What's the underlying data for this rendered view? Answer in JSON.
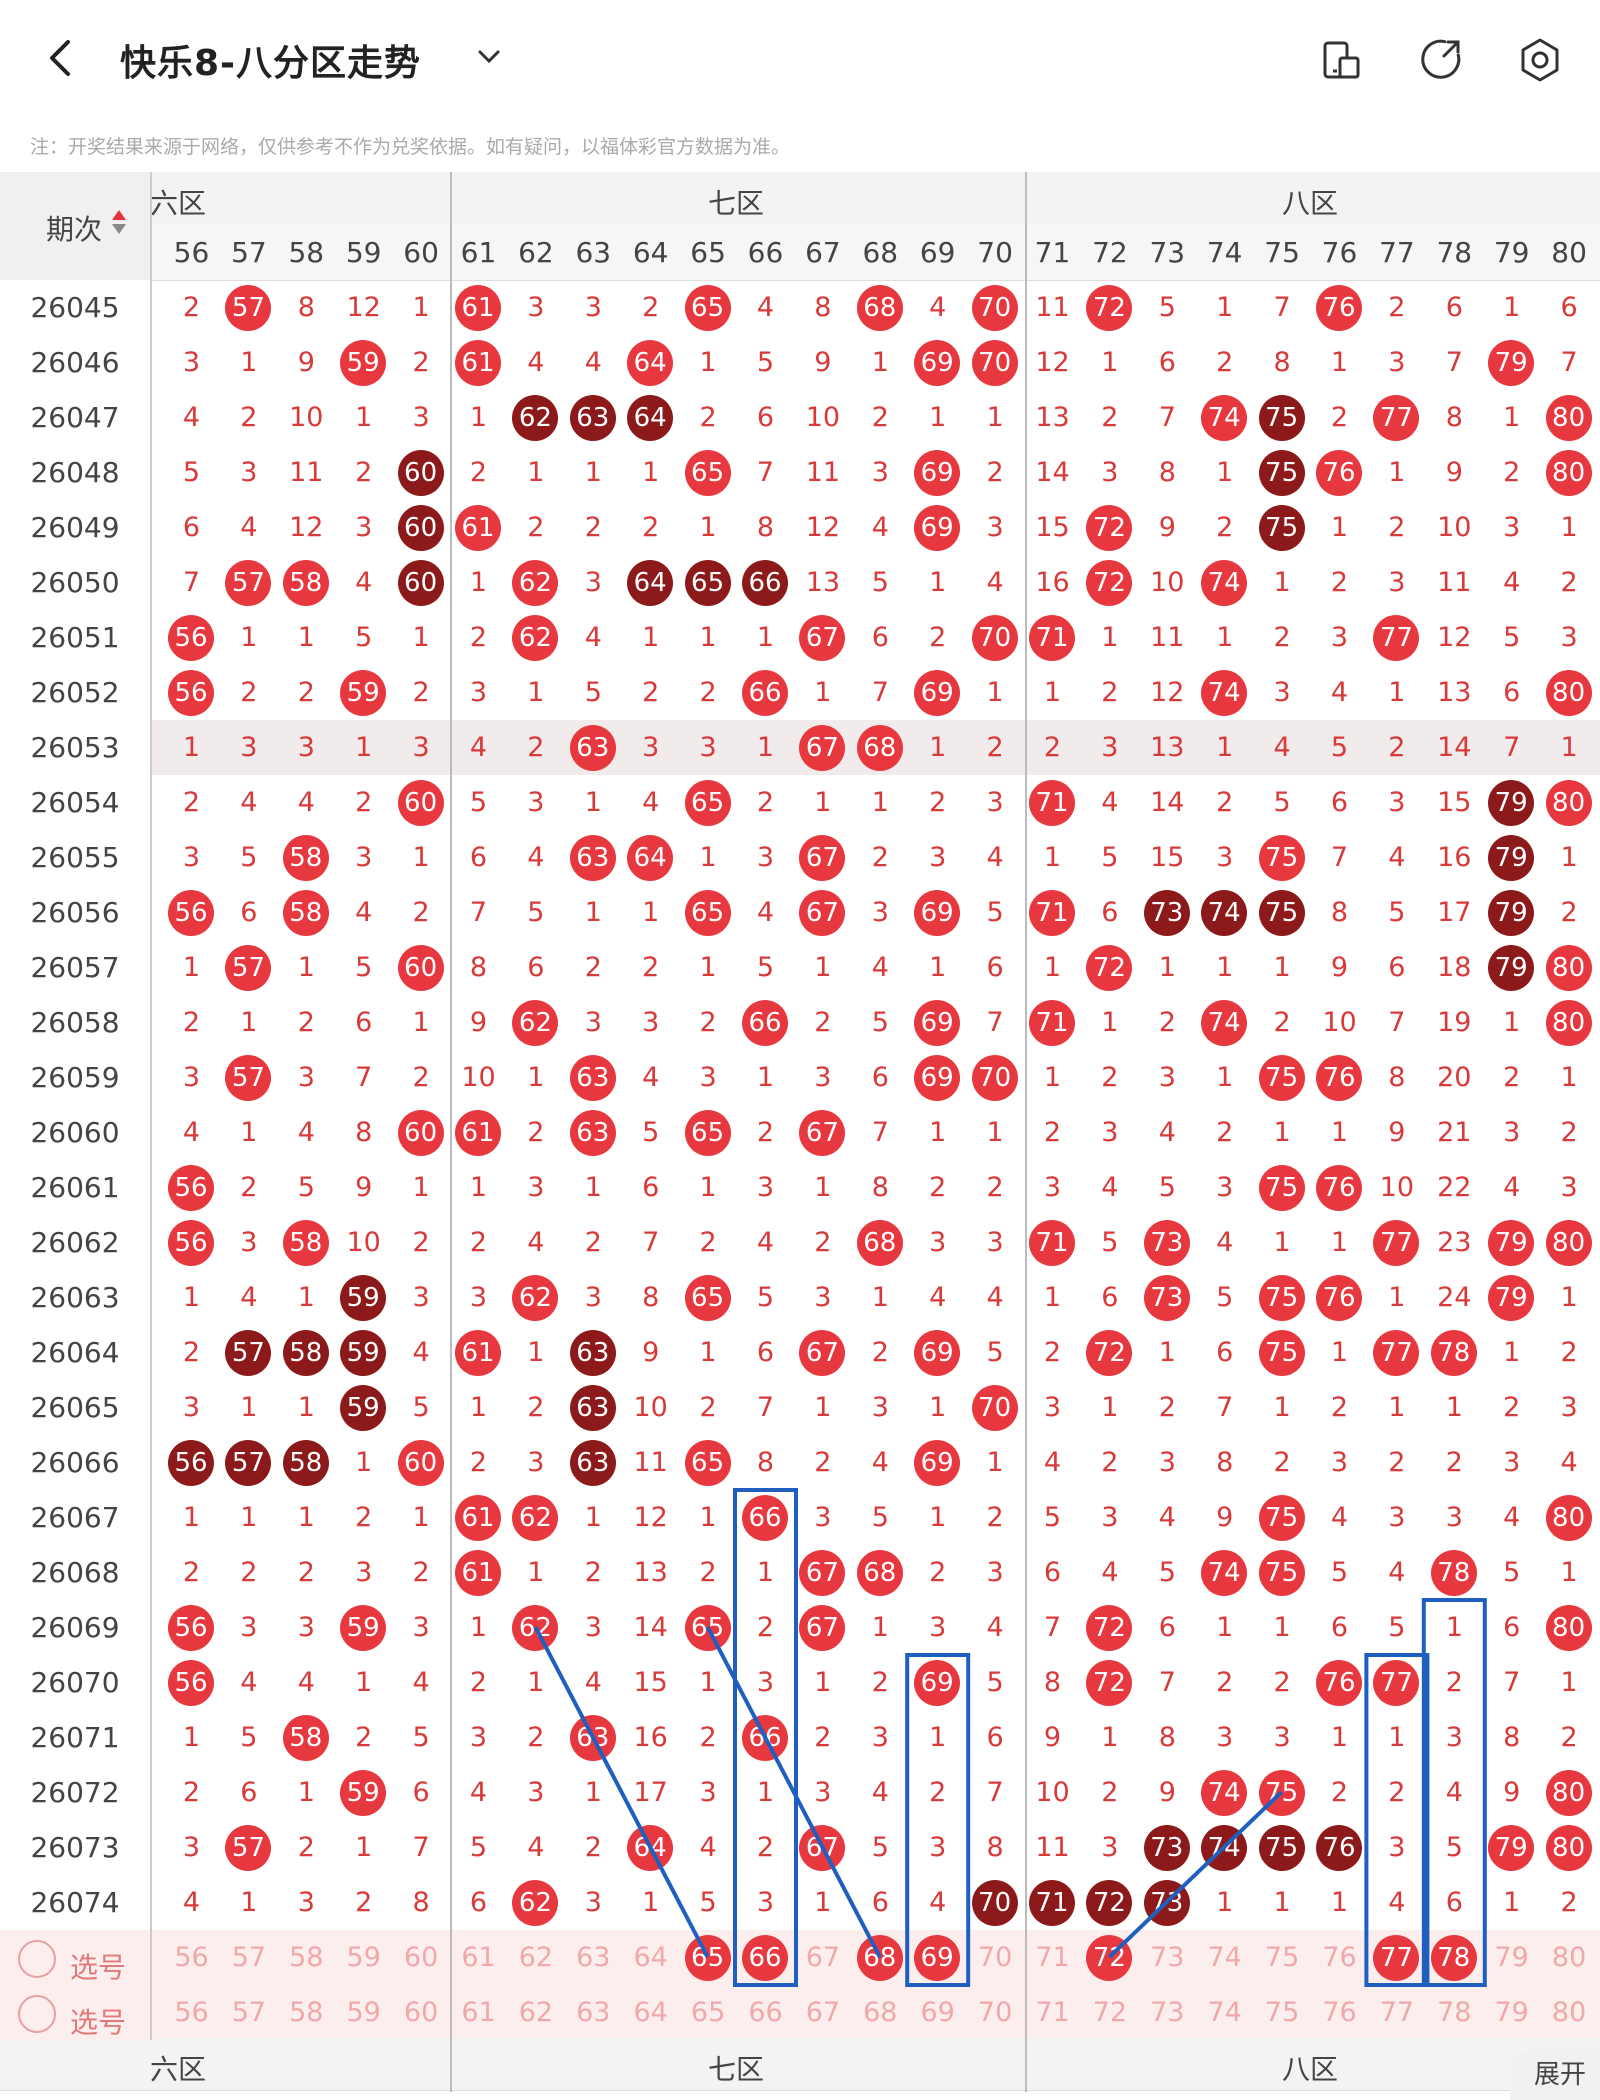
{
  "header": {
    "title": "快乐8-八分区走势",
    "notice": "注：开奖结果来源于网络，仅供参考不作为兑奖依据。如有疑问，以福体彩官方数据为准。"
  },
  "table": {
    "corner_label": "期次",
    "zones": [
      "六区",
      "七区",
      "八区"
    ],
    "zone_top_visible": [
      "六区",
      "七区",
      "八区"
    ],
    "zone_bottom_visible": [
      "六区",
      "七区",
      "八区"
    ],
    "columns": [
      56,
      57,
      58,
      59,
      60,
      61,
      62,
      63,
      64,
      65,
      66,
      67,
      68,
      69,
      70,
      71,
      72,
      73,
      74,
      75,
      76,
      77,
      78,
      79,
      80
    ],
    "rows": [
      {
        "period": "26045",
        "cells": [
          "2",
          "B57",
          "8",
          "12",
          "1",
          "B61",
          "3",
          "3",
          "2",
          "B65",
          "4",
          "8",
          "B68",
          "4",
          "B70",
          "11",
          "B72",
          "5",
          "1",
          "7",
          "B76",
          "2",
          "6",
          "1",
          "6"
        ]
      },
      {
        "period": "26046",
        "cells": [
          "3",
          "1",
          "9",
          "B59",
          "2",
          "B61",
          "4",
          "4",
          "B64",
          "1",
          "5",
          "9",
          "1",
          "B69",
          "B70",
          "12",
          "1",
          "6",
          "2",
          "8",
          "1",
          "3",
          "7",
          "B79",
          "7"
        ]
      },
      {
        "period": "26047",
        "cells": [
          "4",
          "2",
          "10",
          "1",
          "3",
          "1",
          "D62",
          "D63",
          "D64",
          "2",
          "6",
          "10",
          "2",
          "1",
          "1",
          "13",
          "2",
          "7",
          "B74",
          "D75",
          "2",
          "B77",
          "8",
          "1",
          "B80"
        ]
      },
      {
        "period": "26048",
        "cells": [
          "5",
          "3",
          "11",
          "2",
          "D60",
          "2",
          "1",
          "1",
          "1",
          "B65",
          "7",
          "11",
          "3",
          "B69",
          "2",
          "14",
          "3",
          "8",
          "1",
          "D75",
          "B76",
          "1",
          "9",
          "2",
          "B80"
        ]
      },
      {
        "period": "26049",
        "cells": [
          "6",
          "4",
          "12",
          "3",
          "D60",
          "B61",
          "2",
          "2",
          "2",
          "1",
          "8",
          "12",
          "4",
          "B69",
          "3",
          "15",
          "B72",
          "9",
          "2",
          "D75",
          "1",
          "2",
          "10",
          "3",
          "1"
        ]
      },
      {
        "period": "26050",
        "cells": [
          "7",
          "B57",
          "B58",
          "4",
          "D60",
          "1",
          "B62",
          "3",
          "D64",
          "D65",
          "D66",
          "13",
          "5",
          "1",
          "4",
          "16",
          "B72",
          "10",
          "B74",
          "1",
          "2",
          "3",
          "11",
          "4",
          "2"
        ]
      },
      {
        "period": "26051",
        "cells": [
          "B56",
          "1",
          "1",
          "5",
          "1",
          "2",
          "B62",
          "4",
          "1",
          "1",
          "1",
          "B67",
          "6",
          "2",
          "B70",
          "B71",
          "1",
          "11",
          "1",
          "2",
          "3",
          "B77",
          "12",
          "5",
          "3"
        ]
      },
      {
        "period": "26052",
        "cells": [
          "B56",
          "2",
          "2",
          "B59",
          "2",
          "3",
          "1",
          "5",
          "2",
          "2",
          "B66",
          "1",
          "7",
          "B69",
          "1",
          "1",
          "2",
          "12",
          "B74",
          "3",
          "4",
          "1",
          "13",
          "6",
          "B80"
        ]
      },
      {
        "period": "26053",
        "shade": true,
        "cells": [
          "1",
          "3",
          "3",
          "1",
          "3",
          "4",
          "2",
          "B63",
          "3",
          "3",
          "1",
          "B67",
          "B68",
          "1",
          "2",
          "2",
          "3",
          "13",
          "1",
          "4",
          "5",
          "2",
          "14",
          "7",
          "1"
        ]
      },
      {
        "period": "26054",
        "cells": [
          "2",
          "4",
          "4",
          "2",
          "B60",
          "5",
          "3",
          "1",
          "4",
          "B65",
          "2",
          "1",
          "1",
          "2",
          "3",
          "B71",
          "4",
          "14",
          "2",
          "5",
          "6",
          "3",
          "15",
          "D79",
          "B80"
        ]
      },
      {
        "period": "26055",
        "cells": [
          "3",
          "5",
          "B58",
          "3",
          "1",
          "6",
          "4",
          "B63",
          "B64",
          "1",
          "3",
          "B67",
          "2",
          "3",
          "4",
          "1",
          "5",
          "15",
          "3",
          "B75",
          "7",
          "4",
          "16",
          "D79",
          "1"
        ]
      },
      {
        "period": "26056",
        "cells": [
          "B56",
          "6",
          "B58",
          "4",
          "2",
          "7",
          "5",
          "1",
          "1",
          "B65",
          "4",
          "B67",
          "3",
          "B69",
          "5",
          "B71",
          "6",
          "D73",
          "D74",
          "D75",
          "8",
          "5",
          "17",
          "D79",
          "2"
        ]
      },
      {
        "period": "26057",
        "cells": [
          "1",
          "B57",
          "1",
          "5",
          "B60",
          "8",
          "6",
          "2",
          "2",
          "1",
          "5",
          "1",
          "4",
          "1",
          "6",
          "1",
          "B72",
          "1",
          "1",
          "1",
          "9",
          "6",
          "18",
          "D79",
          "B80"
        ]
      },
      {
        "period": "26058",
        "cells": [
          "2",
          "1",
          "2",
          "6",
          "1",
          "9",
          "B62",
          "3",
          "3",
          "2",
          "B66",
          "2",
          "5",
          "B69",
          "7",
          "B71",
          "1",
          "2",
          "B74",
          "2",
          "10",
          "7",
          "19",
          "1",
          "B80"
        ]
      },
      {
        "period": "26059",
        "cells": [
          "3",
          "B57",
          "3",
          "7",
          "2",
          "10",
          "1",
          "B63",
          "4",
          "3",
          "1",
          "3",
          "6",
          "B69",
          "B70",
          "1",
          "2",
          "3",
          "1",
          "B75",
          "B76",
          "8",
          "20",
          "2",
          "1"
        ]
      },
      {
        "period": "26060",
        "cells": [
          "4",
          "1",
          "4",
          "8",
          "B60",
          "B61",
          "2",
          "B63",
          "5",
          "B65",
          "2",
          "B67",
          "7",
          "1",
          "1",
          "2",
          "3",
          "4",
          "2",
          "1",
          "1",
          "9",
          "21",
          "3",
          "2"
        ]
      },
      {
        "period": "26061",
        "cells": [
          "B56",
          "2",
          "5",
          "9",
          "1",
          "1",
          "3",
          "1",
          "6",
          "1",
          "3",
          "1",
          "8",
          "2",
          "2",
          "3",
          "4",
          "5",
          "3",
          "B75",
          "B76",
          "10",
          "22",
          "4",
          "3"
        ]
      },
      {
        "period": "26062",
        "cells": [
          "B56",
          "3",
          "B58",
          "10",
          "2",
          "2",
          "4",
          "2",
          "7",
          "2",
          "4",
          "2",
          "B68",
          "3",
          "3",
          "B71",
          "5",
          "B73",
          "4",
          "1",
          "1",
          "B77",
          "23",
          "B79",
          "B80"
        ]
      },
      {
        "period": "26063",
        "cells": [
          "1",
          "4",
          "1",
          "D59",
          "3",
          "3",
          "B62",
          "3",
          "8",
          "B65",
          "5",
          "3",
          "1",
          "4",
          "4",
          "1",
          "6",
          "B73",
          "5",
          "B75",
          "B76",
          "1",
          "24",
          "B79",
          "1"
        ]
      },
      {
        "period": "26064",
        "cells": [
          "2",
          "D57",
          "D58",
          "D59",
          "4",
          "B61",
          "1",
          "D63",
          "9",
          "1",
          "6",
          "B67",
          "2",
          "B69",
          "5",
          "2",
          "B72",
          "1",
          "6",
          "B75",
          "1",
          "B77",
          "B78",
          "1",
          "2"
        ]
      },
      {
        "period": "26065",
        "cells": [
          "3",
          "1",
          "1",
          "D59",
          "5",
          "1",
          "2",
          "D63",
          "10",
          "2",
          "7",
          "1",
          "3",
          "1",
          "B70",
          "3",
          "1",
          "2",
          "7",
          "1",
          "2",
          "1",
          "1",
          "2",
          "3"
        ]
      },
      {
        "period": "26066",
        "cells": [
          "D56",
          "D57",
          "D58",
          "1",
          "B60",
          "2",
          "3",
          "D63",
          "11",
          "B65",
          "8",
          "2",
          "4",
          "B69",
          "1",
          "4",
          "2",
          "3",
          "8",
          "2",
          "3",
          "2",
          "2",
          "3",
          "4"
        ]
      },
      {
        "period": "26067",
        "cells": [
          "1",
          "1",
          "1",
          "2",
          "1",
          "B61",
          "B62",
          "1",
          "12",
          "1",
          "B66",
          "3",
          "5",
          "1",
          "2",
          "5",
          "3",
          "4",
          "9",
          "B75",
          "4",
          "3",
          "3",
          "4",
          "B80"
        ]
      },
      {
        "period": "26068",
        "cells": [
          "2",
          "2",
          "2",
          "3",
          "2",
          "B61",
          "1",
          "2",
          "13",
          "2",
          "1",
          "B67",
          "B68",
          "2",
          "3",
          "6",
          "4",
          "5",
          "B74",
          "B75",
          "5",
          "4",
          "B78",
          "5",
          "1"
        ]
      },
      {
        "period": "26069",
        "cells": [
          "B56",
          "3",
          "3",
          "B59",
          "3",
          "1",
          "B62",
          "3",
          "14",
          "B65",
          "2",
          "B67",
          "1",
          "3",
          "4",
          "7",
          "B72",
          "6",
          "1",
          "1",
          "6",
          "5",
          "1",
          "6",
          "B80"
        ]
      },
      {
        "period": "26070",
        "cells": [
          "B56",
          "4",
          "4",
          "1",
          "4",
          "2",
          "1",
          "4",
          "15",
          "1",
          "3",
          "1",
          "2",
          "B69",
          "5",
          "8",
          "B72",
          "7",
          "2",
          "2",
          "B76",
          "B77",
          "2",
          "7",
          "1"
        ]
      },
      {
        "period": "26071",
        "cells": [
          "1",
          "5",
          "B58",
          "2",
          "5",
          "3",
          "2",
          "B63",
          "16",
          "2",
          "B66",
          "2",
          "3",
          "1",
          "6",
          "9",
          "1",
          "8",
          "3",
          "3",
          "1",
          "1",
          "3",
          "8",
          "2"
        ]
      },
      {
        "period": "26072",
        "cells": [
          "2",
          "6",
          "1",
          "B59",
          "6",
          "4",
          "3",
          "1",
          "17",
          "3",
          "1",
          "3",
          "4",
          "2",
          "7",
          "10",
          "2",
          "9",
          "B74",
          "B75",
          "2",
          "2",
          "4",
          "9",
          "B80"
        ]
      },
      {
        "period": "26073",
        "cells": [
          "3",
          "B57",
          "2",
          "1",
          "7",
          "5",
          "4",
          "2",
          "B64",
          "4",
          "2",
          "B67",
          "5",
          "3",
          "8",
          "11",
          "3",
          "D73",
          "D74",
          "D75",
          "D76",
          "3",
          "5",
          "B79",
          "B80"
        ]
      },
      {
        "period": "26074",
        "cells": [
          "4",
          "1",
          "3",
          "2",
          "8",
          "6",
          "B62",
          "3",
          "1",
          "5",
          "3",
          "1",
          "6",
          "4",
          "D70",
          "D71",
          "D72",
          "D73",
          "1",
          "1",
          "1",
          "4",
          "6",
          "1",
          "2"
        ]
      }
    ],
    "select_rows": [
      {
        "label": "选号",
        "chosen": [
          65,
          66,
          68,
          69,
          72,
          77,
          78
        ]
      },
      {
        "label": "选号",
        "chosen": []
      }
    ]
  },
  "expand_label": "展开",
  "colors": {
    "ball_red": "#e8383f",
    "ball_dark": "#8c1a1a",
    "miss_text": "#d83a3a",
    "annotation_blue": "#1f5fbf"
  }
}
